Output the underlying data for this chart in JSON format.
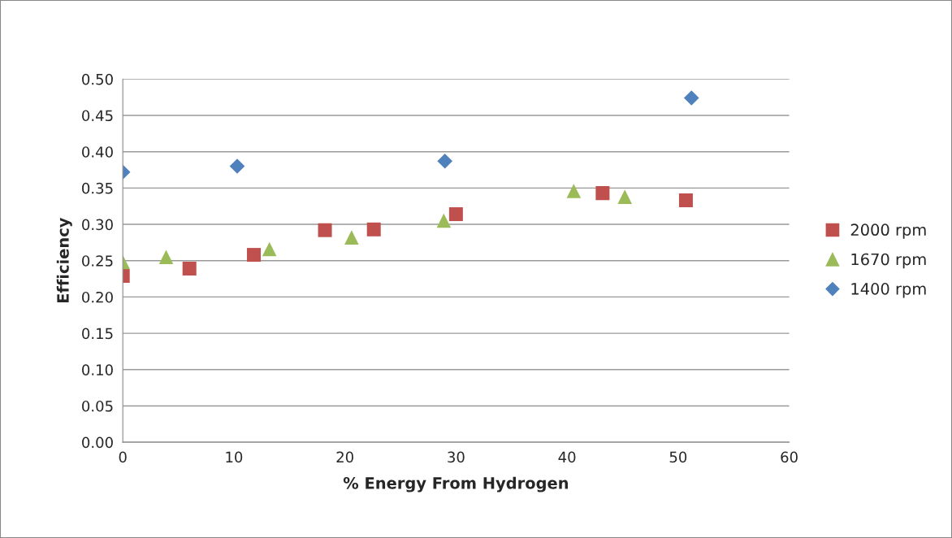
{
  "chart_data": {
    "type": "scatter",
    "xlabel": "% Energy From Hydrogen",
    "ylabel": "Efficiency",
    "xlim": [
      0,
      60
    ],
    "xticks": [
      0,
      10,
      20,
      30,
      40,
      50,
      60
    ],
    "ylim": [
      0,
      0.5
    ],
    "yticks": [
      {
        "value": 0,
        "label": "0.00"
      },
      {
        "value": 0.05,
        "label": "0.05"
      },
      {
        "value": 0.1,
        "label": "0.10"
      },
      {
        "value": 0.15,
        "label": "0.15"
      },
      {
        "value": 0.2,
        "label": "0.20"
      },
      {
        "value": 0.25,
        "label": "0.25"
      },
      {
        "value": 0.3,
        "label": "0.30"
      },
      {
        "value": 0.35,
        "label": "0.35"
      },
      {
        "value": 0.4,
        "label": "0.40"
      },
      {
        "value": 0.45,
        "label": "0.45"
      },
      {
        "value": 0.5,
        "label": "0.50"
      }
    ],
    "grid": "y",
    "legend": "right",
    "series": [
      {
        "name": "2000 rpm",
        "color": "#c0504d",
        "marker": "square",
        "x": [
          0,
          6.0,
          11.8,
          18.2,
          22.6,
          30.0,
          43.2,
          50.7
        ],
        "values": [
          0.229,
          0.239,
          0.258,
          0.292,
          0.293,
          0.314,
          0.343,
          0.333
        ]
      },
      {
        "name": "1670 rpm",
        "color": "#9bbb59",
        "marker": "triangle",
        "x": [
          0,
          3.9,
          13.2,
          20.6,
          28.9,
          40.6,
          45.2
        ],
        "values": [
          0.248,
          0.255,
          0.266,
          0.282,
          0.305,
          0.346,
          0.338
        ]
      },
      {
        "name": "1400 rpm",
        "color": "#4f81bd",
        "marker": "diamond",
        "x": [
          0,
          10.3,
          29.0,
          51.2
        ],
        "values": [
          0.372,
          0.38,
          0.387,
          0.474
        ]
      }
    ]
  }
}
